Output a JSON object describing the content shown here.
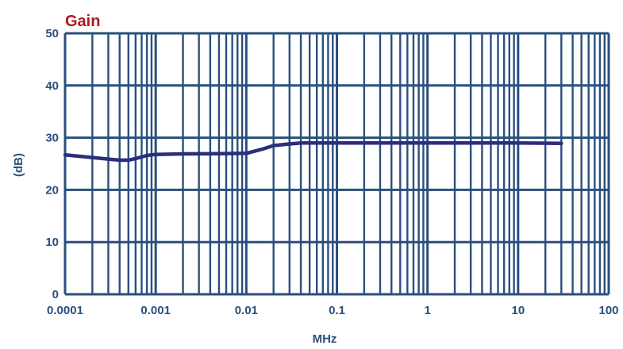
{
  "chart_data": {
    "type": "line",
    "title": "Gain",
    "ylabel": "(dB)",
    "xlabel": "MHz",
    "x_scale": "log",
    "xlim": [
      0.0001,
      100
    ],
    "ylim": [
      0,
      50
    ],
    "x_ticks": [
      {
        "value": 0.0001,
        "label": "0.0001"
      },
      {
        "value": 0.001,
        "label": "0.001"
      },
      {
        "value": 0.01,
        "label": "0.01"
      },
      {
        "value": 0.1,
        "label": "0.1"
      },
      {
        "value": 1,
        "label": "1"
      },
      {
        "value": 10,
        "label": "10"
      },
      {
        "value": 100,
        "label": "100"
      }
    ],
    "y_ticks": [
      {
        "value": 0,
        "label": "0"
      },
      {
        "value": 10,
        "label": "10"
      },
      {
        "value": 20,
        "label": "20"
      },
      {
        "value": 30,
        "label": "30"
      },
      {
        "value": 40,
        "label": "40"
      },
      {
        "value": 50,
        "label": "50"
      }
    ],
    "grid": true,
    "legend": false,
    "series": [
      {
        "color": "#2b2e7a",
        "x": [
          0.0001,
          0.0002,
          0.0003,
          0.0004,
          0.0005,
          0.0006,
          0.0008,
          0.001,
          0.002,
          0.005,
          0.01,
          0.015,
          0.02,
          0.03,
          0.04,
          0.05,
          0.1,
          1,
          10,
          30
        ],
        "y": [
          26.7,
          26.2,
          25.9,
          25.7,
          25.7,
          26.0,
          26.6,
          26.8,
          26.9,
          26.95,
          27.0,
          27.8,
          28.5,
          28.8,
          29.0,
          29.0,
          29.0,
          29.0,
          29.0,
          28.9
        ]
      }
    ],
    "colors": {
      "grid": "#2a4f7e",
      "tick_label": "#2a4f7e",
      "title": "#b0181c"
    }
  }
}
